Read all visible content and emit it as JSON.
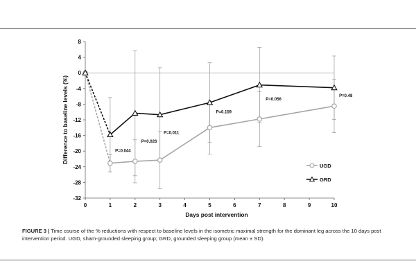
{
  "chart_data": {
    "type": "line",
    "xlabel": "Days post intervention",
    "ylabel": "Difference to baseline levels (%)",
    "xlim": [
      0,
      10
    ],
    "ylim": [
      -32,
      8
    ],
    "x_ticks": [
      "0",
      "1",
      "2",
      "3",
      "4",
      "5",
      "6",
      "7",
      "8",
      "9",
      "10"
    ],
    "y_ticks": [
      "8",
      "4",
      "0",
      "-4",
      "-8",
      "-12",
      "-16",
      "-20",
      "-24",
      "-28",
      "-32"
    ],
    "grid": false,
    "legend_position": "right",
    "series": [
      {
        "name": "UGD",
        "color": "#a6a6a6",
        "marker": "circle",
        "x": [
          0,
          1,
          2,
          3,
          5,
          7,
          10
        ],
        "y": [
          0,
          -23.1,
          -22.6,
          -22.3,
          -14.0,
          -11.8,
          -8.5
        ],
        "sd": [
          0,
          2.2,
          5.5,
          7.3,
          6.8,
          7.0,
          6.8
        ]
      },
      {
        "name": "GRD",
        "color": "#111111",
        "marker": "triangle",
        "x": [
          0,
          1,
          2,
          3,
          5,
          7,
          10
        ],
        "y": [
          0,
          -15.8,
          -10.3,
          -10.7,
          -7.6,
          -3.1,
          -3.8
        ],
        "sd": [
          0,
          9.5,
          16.0,
          12.0,
          10.2,
          9.6,
          8.1
        ]
      }
    ],
    "annotations": [
      {
        "text": "P=0.044",
        "x": 1.2,
        "y": -20.2
      },
      {
        "text": "P=0.026",
        "x": 2.25,
        "y": -17.8
      },
      {
        "text": "P=0.011",
        "x": 3.15,
        "y": -15.6
      },
      {
        "text": "P=0.159",
        "x": 5.25,
        "y": -10.3
      },
      {
        "text": "P=0.056",
        "x": 7.25,
        "y": -7.0
      },
      {
        "text": "P=0.48",
        "x": 10.2,
        "y": -6.2
      }
    ]
  },
  "caption": {
    "label": "FIGURE 3 |",
    "text": "Time course of the % reductions with respect to baseline levels in the isometric maximal strength for the dominant leg across the 10 days post intervention period. UGD, sham-grounded sleeping group; GRD, grounded sleeping group (mean ± SD)."
  }
}
